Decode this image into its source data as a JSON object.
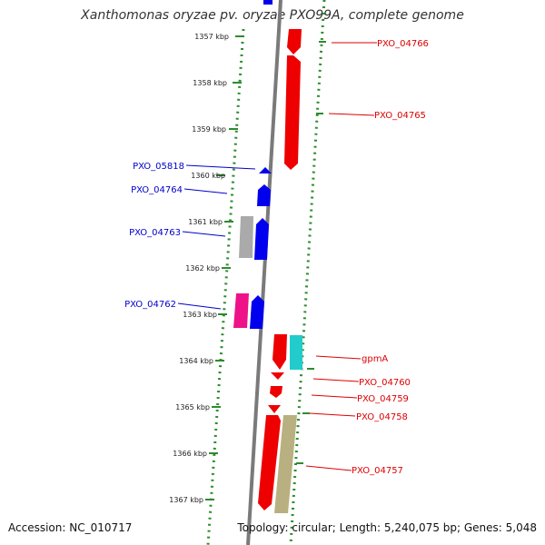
{
  "title": "Xanthomonas oryzae pv. oryzae PXO99A, complete genome",
  "accession": "Accession: NC_010717",
  "summary": "Topology: circular; Length: 5,240,075 bp; Genes: 5,048",
  "colors": {
    "axis": "#777777",
    "ticks": "#2e8b2e",
    "forward_labels": "#dd0000",
    "reverse_labels": "#0000cc",
    "red": "#ee0000",
    "blue": "#0000ee",
    "cyan": "#22cccc",
    "grey": "#aaaaaa",
    "magenta": "#ee1188",
    "khaki": "#b8b080"
  },
  "scale": [
    {
      "label": "1357 kbp"
    },
    {
      "label": "1358 kbp"
    },
    {
      "label": "1359 kbp"
    },
    {
      "label": "1360 kbp"
    },
    {
      "label": "1361 kbp"
    },
    {
      "label": "1362 kbp"
    },
    {
      "label": "1363 kbp"
    },
    {
      "label": "1364 kbp"
    },
    {
      "label": "1365 kbp"
    },
    {
      "label": "1366 kbp"
    },
    {
      "label": "1367 kbp"
    }
  ],
  "gene_labels": [
    {
      "text": "PXO_04766",
      "strand": "forward"
    },
    {
      "text": "PXO_04765",
      "strand": "forward"
    },
    {
      "text": "PXO_05818",
      "strand": "reverse"
    },
    {
      "text": "PXO_04764",
      "strand": "reverse"
    },
    {
      "text": "PXO_04763",
      "strand": "reverse"
    },
    {
      "text": "PXO_04762",
      "strand": "reverse"
    },
    {
      "text": "gpmA",
      "strand": "forward"
    },
    {
      "text": "PXO_04760",
      "strand": "forward"
    },
    {
      "text": "PXO_04759",
      "strand": "forward"
    },
    {
      "text": "PXO_04758",
      "strand": "forward"
    },
    {
      "text": "PXO_04757",
      "strand": "forward"
    }
  ]
}
